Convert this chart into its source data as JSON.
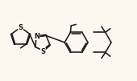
{
  "bg_color": "#fcf8f0",
  "bond_color": "#1a1a1a",
  "line_width": 1.15,
  "font_size": 5.5,
  "label_color": "#1a1a1a",
  "xlim": [
    0.0,
    10.5
  ],
  "ylim": [
    0.5,
    6.0
  ]
}
